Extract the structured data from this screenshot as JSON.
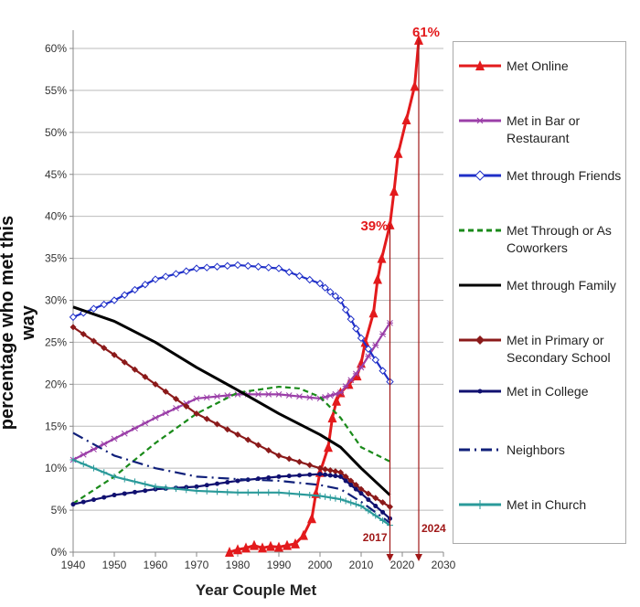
{
  "chart_data": {
    "type": "line",
    "xlabel": "Year Couple Met",
    "ylabel": "percentage who met this way",
    "xlim": [
      1940,
      2030
    ],
    "ylim": [
      0,
      60
    ],
    "xticks": [
      "1940",
      "1950",
      "1960",
      "1970",
      "1980",
      "1990",
      "2000",
      "2010",
      "2020",
      "2030"
    ],
    "yticks": [
      "0%",
      "5%",
      "10%",
      "15%",
      "20%",
      "25%",
      "30%",
      "35%",
      "40%",
      "45%",
      "50%",
      "55%",
      "60%"
    ],
    "grid": "horizontal",
    "legend": "right",
    "annotations": [
      {
        "text": "61%",
        "x": 2024,
        "y": 61
      },
      {
        "text": "39%",
        "x": 2017,
        "y": 39
      },
      {
        "text": "2017",
        "x": 2017
      },
      {
        "text": "2024",
        "x": 2024
      }
    ],
    "series": [
      {
        "name": "Met Online",
        "color": "#e31a1c",
        "marker": "triangle",
        "dash": "solid",
        "x": [
          1978,
          1980,
          1982,
          1984,
          1986,
          1988,
          1990,
          1992,
          1994,
          1996,
          1998,
          1999,
          2000,
          2002,
          2003,
          2004,
          2005,
          2007,
          2009,
          2010,
          2011,
          2013,
          2014,
          2015,
          2017,
          2018,
          2019,
          2021,
          2023,
          2024
        ],
        "y": [
          0,
          0.3,
          0.5,
          0.8,
          0.5,
          0.7,
          0.6,
          0.8,
          1,
          2,
          4,
          7,
          9.5,
          12.5,
          16,
          18,
          19,
          20,
          21,
          22.5,
          25,
          28.5,
          32.5,
          35,
          39,
          43,
          47.5,
          51.5,
          55.5,
          61
        ]
      },
      {
        "name": "Met in Bar or Restaurant",
        "color": "#9b3fa8",
        "marker": "asterisk",
        "dash": "solid",
        "x": [
          1940,
          1950,
          1960,
          1970,
          1980,
          1990,
          2000,
          2005,
          2010,
          2017
        ],
        "y": [
          11,
          13.5,
          16,
          18.3,
          18.8,
          18.8,
          18.3,
          19,
          22,
          27.3
        ]
      },
      {
        "name": "Met through Friends",
        "color": "#1f2fc8",
        "marker": "diamond-open",
        "dash": "solid",
        "x": [
          1940,
          1950,
          1960,
          1970,
          1980,
          1990,
          2000,
          2005,
          2010,
          2017
        ],
        "y": [
          28,
          30,
          32.5,
          33.8,
          34.2,
          33.8,
          32,
          30,
          25.5,
          20.3
        ]
      },
      {
        "name": "Met Through or As Coworkers",
        "color": "#1a8a1a",
        "marker": "none",
        "dash": "dashed",
        "x": [
          1940,
          1950,
          1960,
          1970,
          1980,
          1990,
          1995,
          2000,
          2005,
          2010,
          2017
        ],
        "y": [
          5.8,
          9,
          13,
          16.5,
          19,
          19.7,
          19.5,
          18.5,
          16,
          12.5,
          10.8
        ]
      },
      {
        "name": "Met through Family",
        "color": "#000000",
        "marker": "none",
        "dash": "solid",
        "x": [
          1940,
          1950,
          1960,
          1970,
          1980,
          1990,
          2000,
          2005,
          2010,
          2017
        ],
        "y": [
          29.2,
          27.5,
          25,
          22,
          19.3,
          16.5,
          14,
          12.5,
          10,
          6.8
        ]
      },
      {
        "name": "Met in Primary or Secondary School",
        "color": "#8b1a1a",
        "marker": "diamond",
        "dash": "solid",
        "x": [
          1940,
          1950,
          1960,
          1970,
          1980,
          1990,
          2000,
          2005,
          2010,
          2017
        ],
        "y": [
          26.8,
          23.5,
          20,
          16.5,
          14,
          11.5,
          10,
          9.5,
          7.5,
          5.4
        ]
      },
      {
        "name": "Met in College",
        "color": "#101070",
        "marker": "circle",
        "dash": "solid",
        "x": [
          1940,
          1950,
          1960,
          1970,
          1980,
          1990,
          2000,
          2005,
          2010,
          2017
        ],
        "y": [
          5.7,
          6.8,
          7.5,
          7.8,
          8.5,
          9,
          9.3,
          9,
          7,
          4
        ]
      },
      {
        "name": "Neighbors",
        "color": "#10207a",
        "marker": "none",
        "dash": "dashdot",
        "x": [
          1940,
          1950,
          1960,
          1970,
          1980,
          1990,
          2000,
          2005,
          2010,
          2017
        ],
        "y": [
          14.2,
          11.5,
          10,
          9,
          8.7,
          8.5,
          8,
          7.5,
          6,
          3.5
        ]
      },
      {
        "name": "Met in Church",
        "color": "#2a9a9a",
        "marker": "plus",
        "dash": "solid",
        "x": [
          1940,
          1950,
          1960,
          1970,
          1980,
          1990,
          2000,
          2005,
          2010,
          2017
        ],
        "y": [
          11,
          9,
          7.8,
          7.3,
          7.1,
          7.1,
          6.7,
          6.3,
          5.5,
          3.2
        ]
      }
    ]
  }
}
